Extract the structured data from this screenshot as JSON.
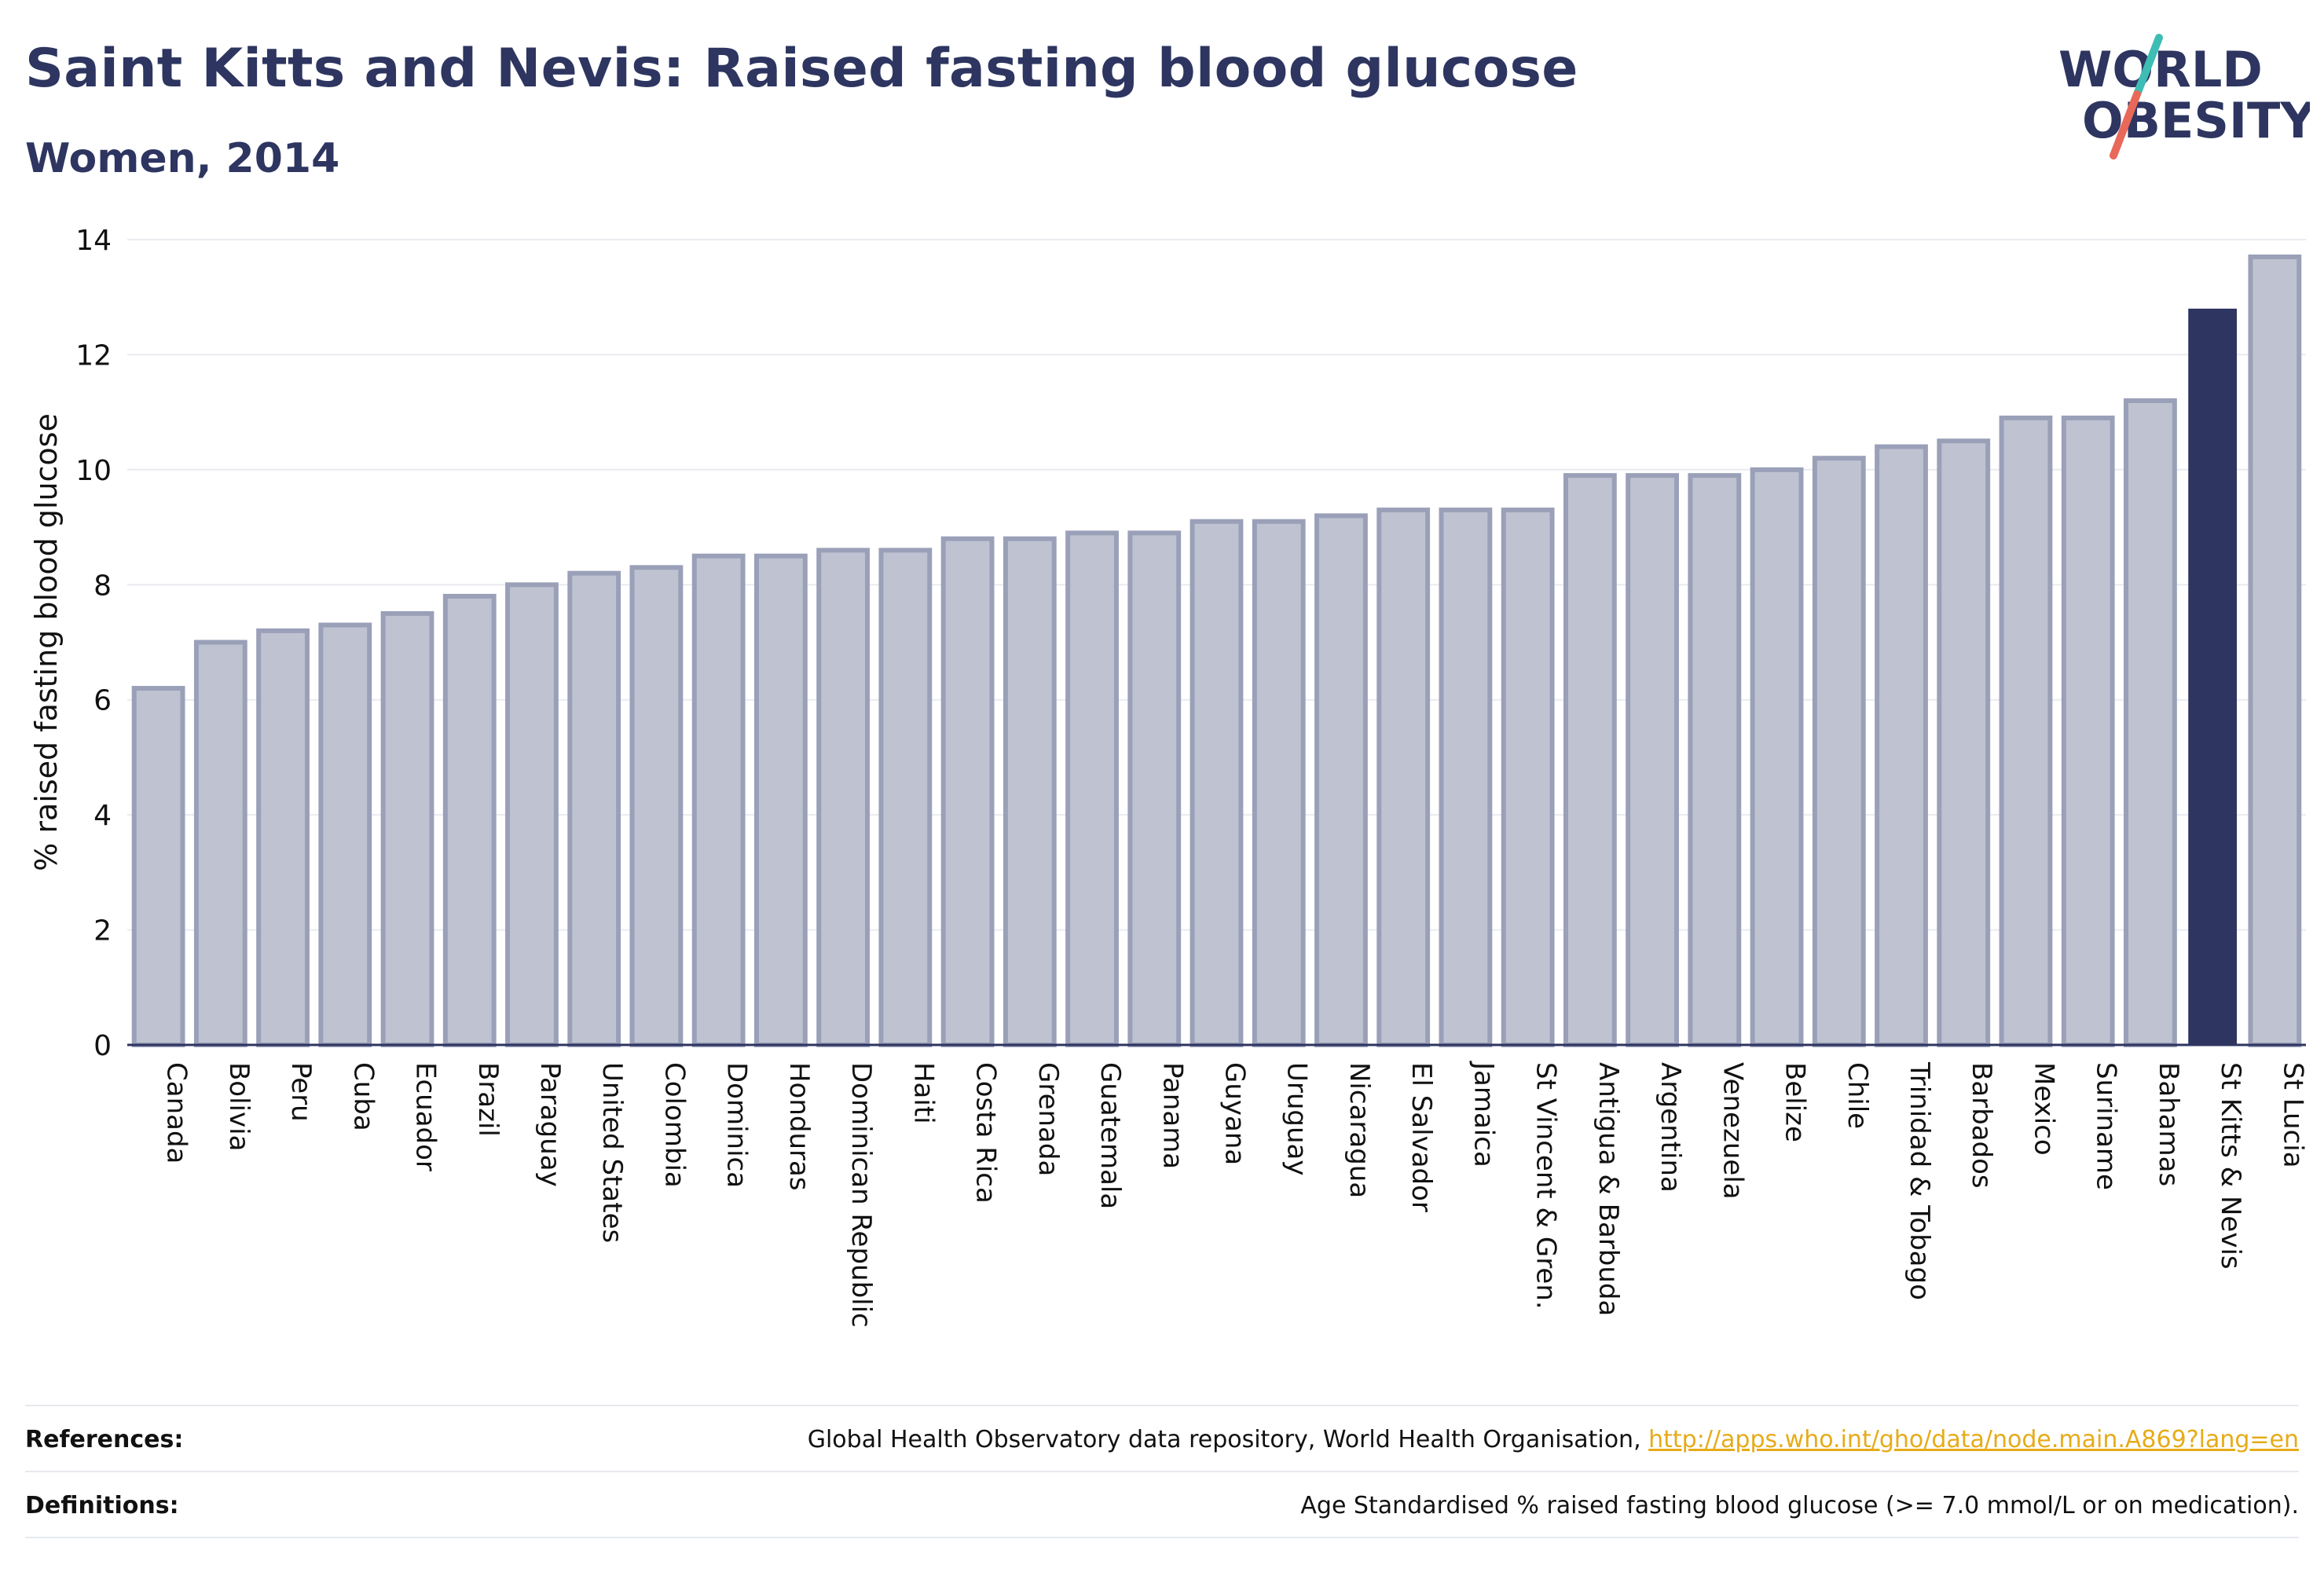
{
  "title": "Saint Kitts and Nevis: Raised fasting blood glucose",
  "subtitle": "Women, 2014",
  "logo": {
    "line1": "WORLD",
    "line2": "OBESITY",
    "accent_teal": "#3dbdb3",
    "accent_red": "#e8685a"
  },
  "colors": {
    "bar": "#bfc3d1",
    "bar_border": "#9aa0b8",
    "highlight": "#2d3560",
    "text": "#2d3560"
  },
  "chart_data": {
    "type": "bar",
    "ylabel": "% raised fasting blood glucose",
    "xlabel": "",
    "ylim": [
      0,
      14
    ],
    "yticks": [
      0,
      2,
      4,
      6,
      8,
      10,
      12,
      14
    ],
    "grid": true,
    "highlight": "St Kitts & Nevis",
    "categories": [
      "Canada",
      "Bolivia",
      "Peru",
      "Cuba",
      "Ecuador",
      "Brazil",
      "Paraguay",
      "United States",
      "Colombia",
      "Dominica",
      "Honduras",
      "Dominican Republic",
      "Haiti",
      "Costa Rica",
      "Grenada",
      "Guatemala",
      "Panama",
      "Guyana",
      "Uruguay",
      "Nicaragua",
      "El Salvador",
      "Jamaica",
      "St Vincent & Gren.",
      "Antigua & Barbuda",
      "Argentina",
      "Venezuela",
      "Belize",
      "Chile",
      "Trinidad & Tobago",
      "Barbados",
      "Mexico",
      "Suriname",
      "Bahamas",
      "St Kitts & Nevis",
      "St Lucia"
    ],
    "values": [
      6.2,
      7.0,
      7.2,
      7.3,
      7.5,
      7.8,
      8.0,
      8.2,
      8.3,
      8.5,
      8.5,
      8.6,
      8.6,
      8.8,
      8.8,
      8.9,
      8.9,
      9.1,
      9.1,
      9.2,
      9.3,
      9.3,
      9.3,
      9.9,
      9.9,
      9.9,
      10.0,
      10.2,
      10.4,
      10.5,
      10.9,
      10.9,
      11.2,
      12.8,
      13.7
    ]
  },
  "footer": {
    "references_label": "References:",
    "references_text": "Global Health Observatory data repository, World Health Organisation, ",
    "references_link": "http://apps.who.int/gho/data/node.main.A869?lang=en",
    "definitions_label": "Definitions:",
    "definitions_text": "Age Standardised % raised fasting blood glucose (>= 7.0 mmol/L or on medication)."
  }
}
